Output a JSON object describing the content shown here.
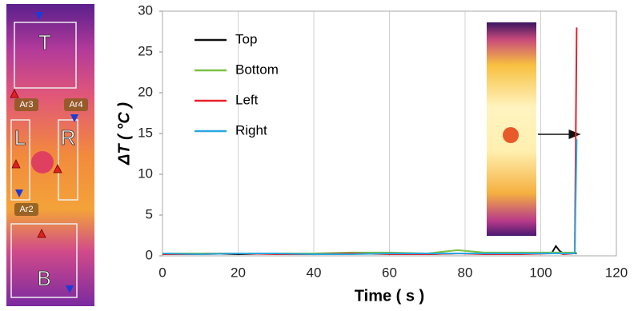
{
  "thermal_image": {
    "region_labels": [
      "T",
      "L",
      "R",
      "B"
    ],
    "area_labels": [
      "Ar3",
      "Ar4",
      "Ar2"
    ]
  },
  "chart_data": {
    "type": "line",
    "x_label": "Time ( s )",
    "y_label": "ΔT ( °C )",
    "x": [
      0,
      10,
      20,
      30,
      40,
      50,
      60,
      70,
      78,
      85,
      95,
      103,
      104,
      105,
      106,
      109,
      109.5
    ],
    "series": [
      {
        "name": "Top",
        "color": "#111111",
        "values": [
          0.2,
          0.3,
          0.2,
          0.3,
          0.2,
          0.3,
          0.3,
          0.2,
          0.3,
          0.3,
          0.3,
          0.4,
          1.2,
          0.6,
          0.3,
          0.3,
          0.3
        ]
      },
      {
        "name": "Bottom",
        "color": "#7ac143",
        "values": [
          0.3,
          0.3,
          0.3,
          0.3,
          0.3,
          0.4,
          0.4,
          0.3,
          0.7,
          0.4,
          0.4,
          0.4,
          0.4,
          0.4,
          0.4,
          0.4,
          0.4
        ]
      },
      {
        "name": "Left",
        "color": "#e8202a",
        "values": [
          0.2,
          0.2,
          0.3,
          0.2,
          0.2,
          0.3,
          0.2,
          0.2,
          0.3,
          0.2,
          0.2,
          0.3,
          0.3,
          0.3,
          0.2,
          0.3,
          28
        ]
      },
      {
        "name": "Right",
        "color": "#2aa7df",
        "values": [
          0.3,
          0.2,
          0.3,
          0.3,
          0.2,
          0.2,
          0.3,
          0.3,
          0.3,
          0.3,
          0.3,
          0.3,
          0.3,
          0.3,
          0.3,
          0.3,
          14.3
        ]
      }
    ],
    "xlim": [
      0,
      120
    ],
    "xticks": [
      0,
      20,
      40,
      60,
      80,
      100,
      120
    ],
    "ylim": [
      0,
      30
    ],
    "yticks": [
      0,
      5,
      10,
      15,
      20,
      25,
      30
    ],
    "grid": "x",
    "legend": "upper-left"
  }
}
